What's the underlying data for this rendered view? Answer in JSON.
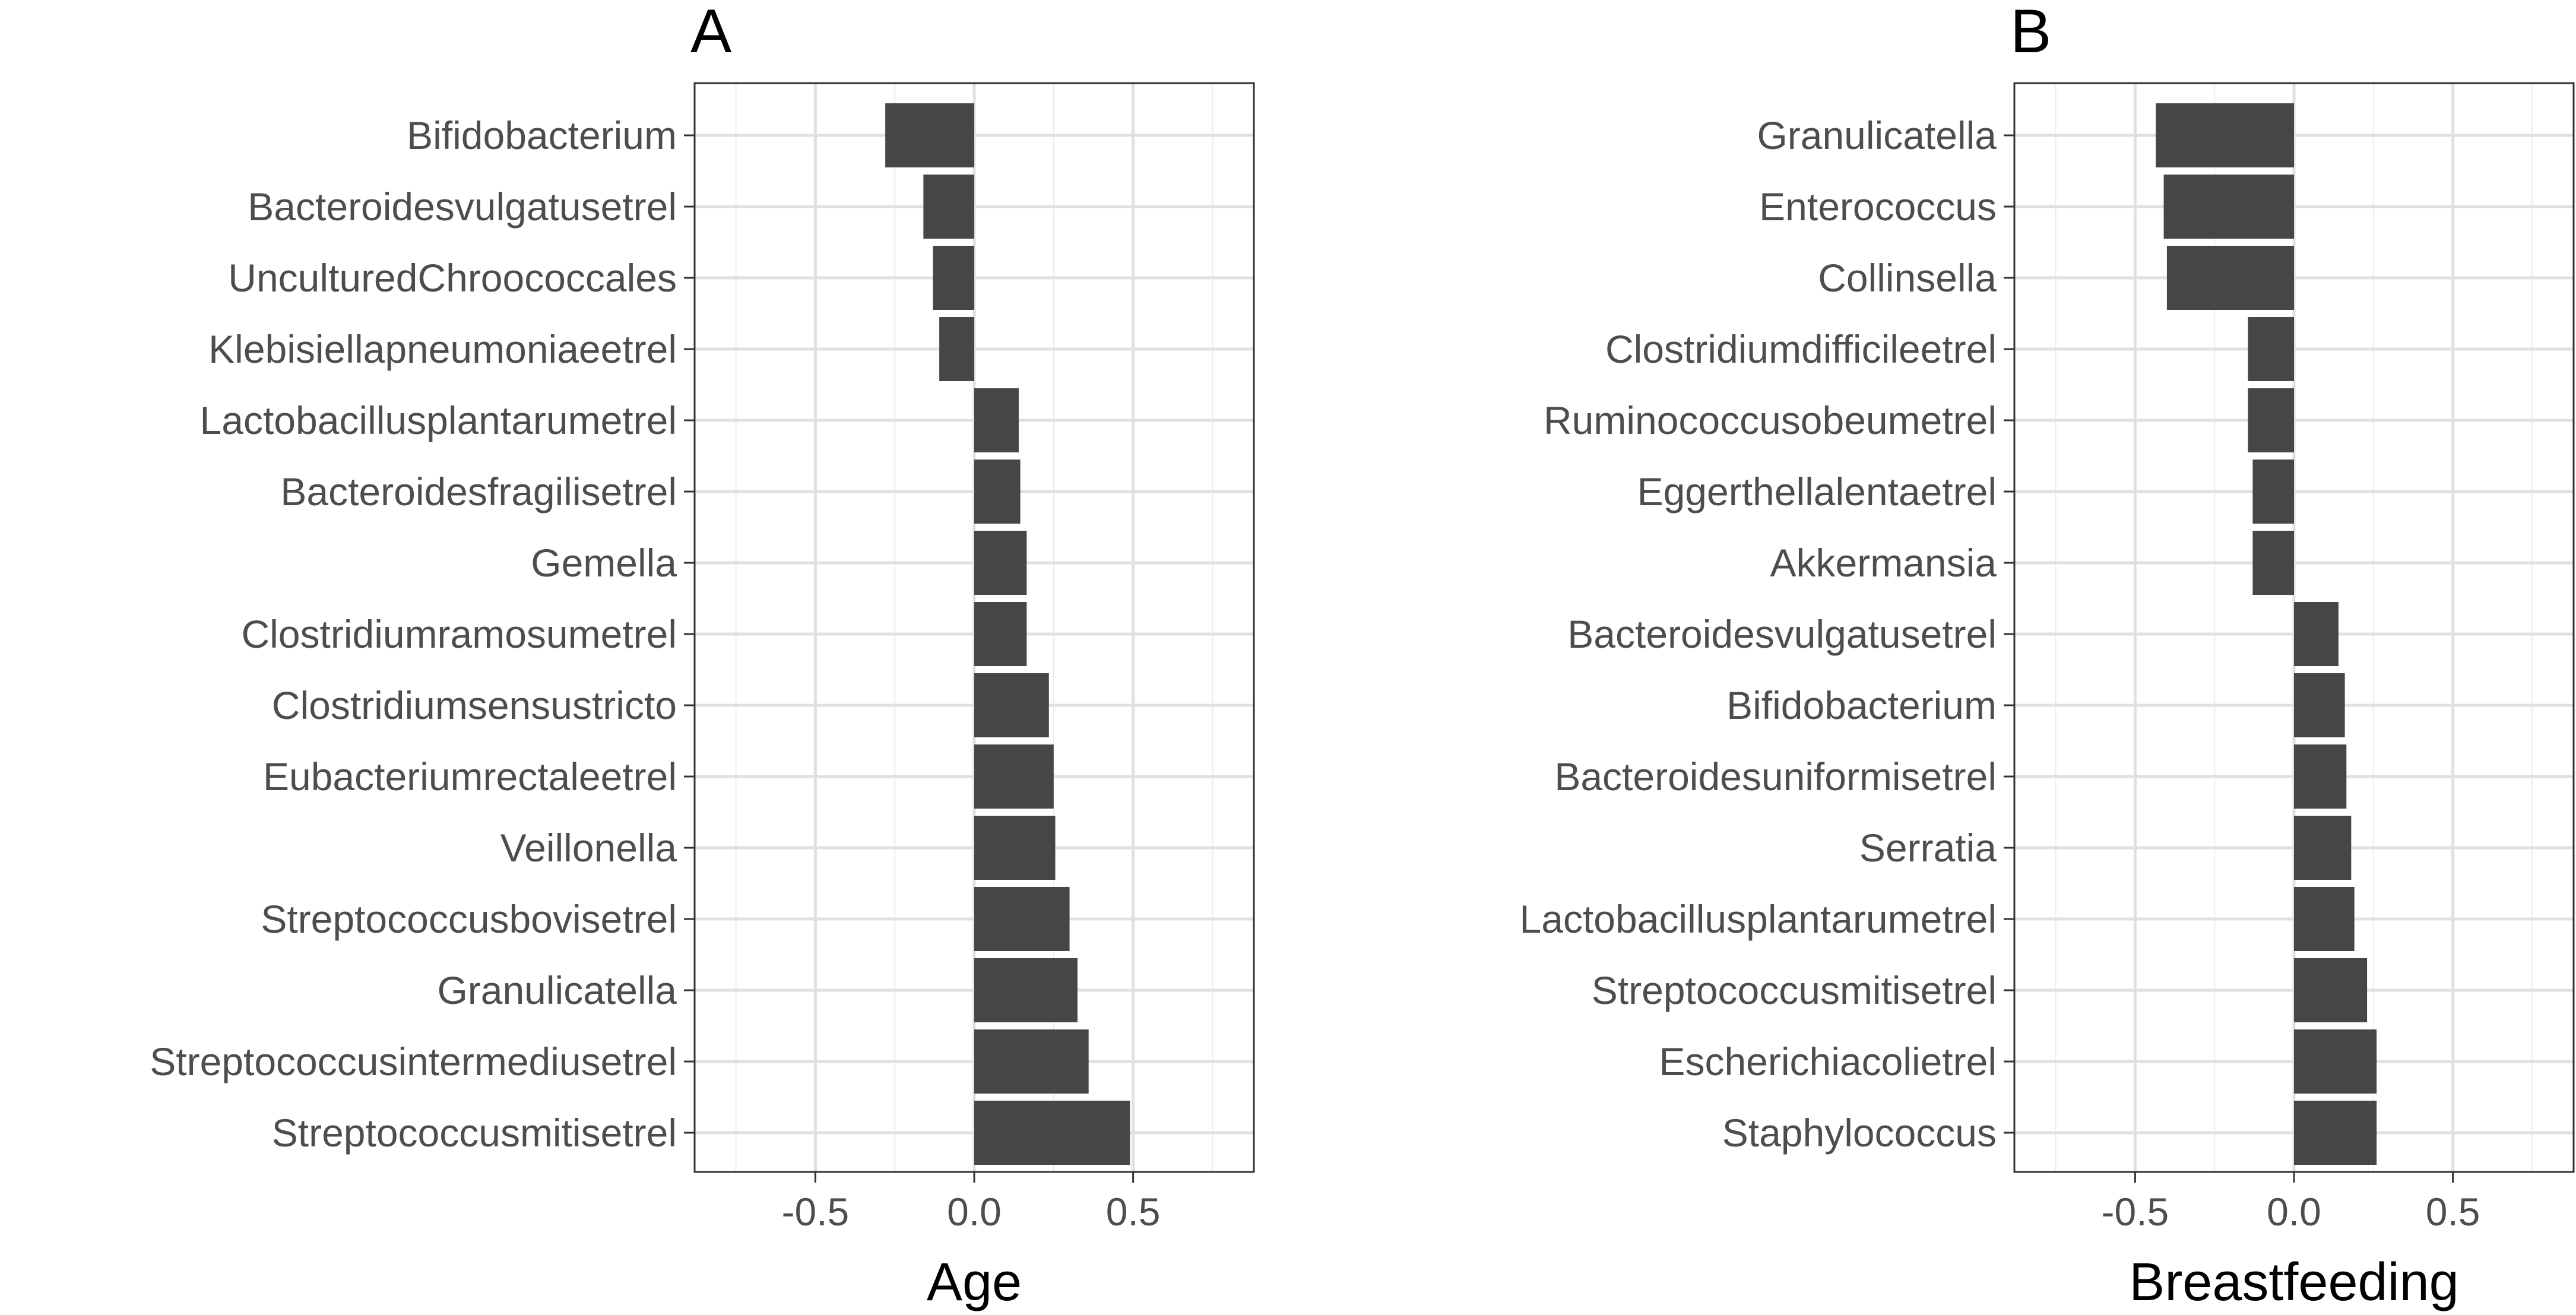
{
  "chart_data": [
    {
      "type": "bar",
      "orientation": "horizontal",
      "tag": "A",
      "xlabel": "Age",
      "ylabel": "",
      "xlim": [
        -0.88,
        0.88
      ],
      "xticks": [
        "-0.5",
        "0.0",
        "0.5"
      ],
      "xtick_values": [
        -0.5,
        0.0,
        0.5
      ],
      "grid": true,
      "categories": [
        "Bifidobacterium",
        "Bacteroidesvulgatusetrel",
        "UnculturedChroococcales",
        "Klebisiellapneumoniaeetrel",
        "Lactobacillusplantarumetrel",
        "Bacteroidesfragilisetrel",
        "Gemella",
        "Clostridiumramosumetrel",
        "Clostridiumsensustricto",
        "Eubacteriumrectaleetrel",
        "Veillonella",
        "Streptococcusbovisetrel",
        "Granulicatella",
        "Streptococcusintermediusetrel",
        "Streptococcusmitisetrel"
      ],
      "values": [
        -0.28,
        -0.16,
        -0.13,
        -0.11,
        0.14,
        0.145,
        0.165,
        0.165,
        0.235,
        0.25,
        0.255,
        0.3,
        0.325,
        0.36,
        0.49
      ],
      "bar_color": "#464646"
    },
    {
      "type": "bar",
      "orientation": "horizontal",
      "tag": "B",
      "xlabel": "Breastfeeding",
      "ylabel": "",
      "xlim": [
        -0.88,
        0.88
      ],
      "xticks": [
        "-0.5",
        "0.0",
        "0.5"
      ],
      "xtick_values": [
        -0.5,
        0.0,
        0.5
      ],
      "grid": true,
      "categories": [
        "Granulicatella",
        "Enterococcus",
        "Collinsella",
        "Clostridiumdifficileetrel",
        "Ruminococcusobeumetrel",
        "Eggerthellalentaetrel",
        "Akkermansia",
        "Bacteroidesvulgatusetrel",
        "Bifidobacterium",
        "Bacteroidesuniformisetrel",
        "Serratia",
        "Lactobacillusplantarumetrel",
        "Streptococcusmitisetrel",
        "Escherichiacolietrel",
        "Staphylococcus"
      ],
      "values": [
        -0.435,
        -0.41,
        -0.4,
        -0.145,
        -0.145,
        -0.13,
        -0.13,
        0.14,
        0.16,
        0.165,
        0.18,
        0.19,
        0.23,
        0.26,
        0.26
      ],
      "bar_color": "#464646"
    }
  ]
}
